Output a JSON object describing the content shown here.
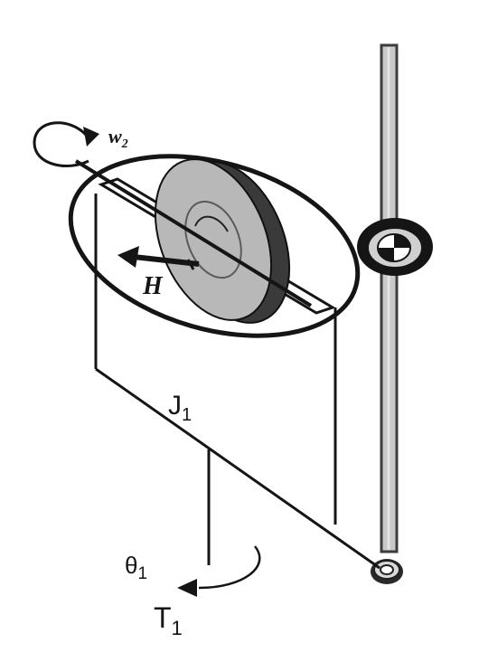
{
  "labels": {
    "w2_main": "w",
    "w2_sub": "2",
    "H": "H",
    "J1_main": "J",
    "J1_sub": "1",
    "theta1_main": "θ",
    "theta1_sub": "1",
    "T1_main": "T",
    "T1_sub": "1"
  },
  "colors": {
    "line": "#151515",
    "disc_face": "#b8b8b8",
    "disc_edge": "#3a3a3a",
    "rod": "#c9c9c9",
    "rod_edge": "#3c3c3c",
    "background": "#ffffff"
  }
}
